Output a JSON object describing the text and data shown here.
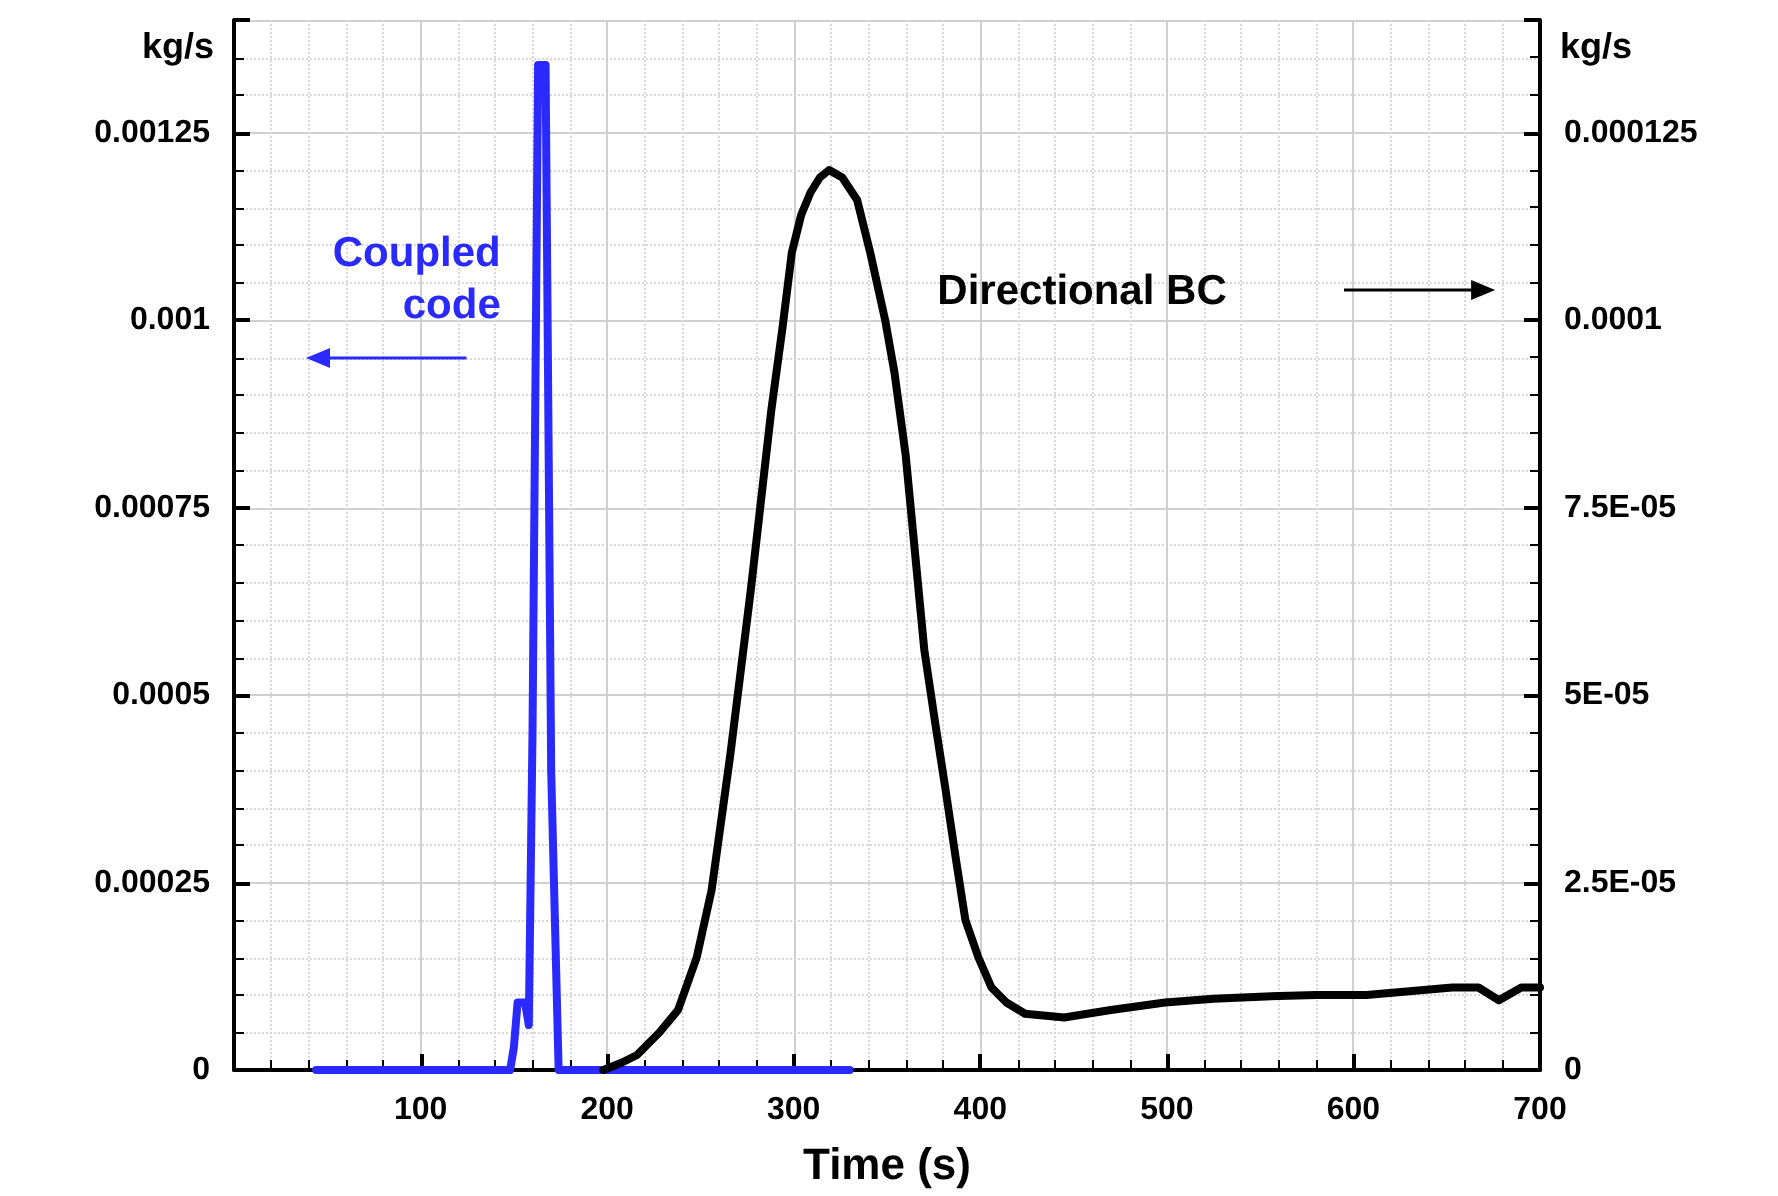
{
  "chart_data": {
    "type": "line",
    "xlabel": "Time (s)",
    "ylabel": "kg/s",
    "y2label": "kg/s",
    "xlim": [
      0,
      700
    ],
    "xticks": [
      100,
      200,
      300,
      400,
      500,
      600,
      700
    ],
    "ylim": [
      0,
      0.0014
    ],
    "yticks": [
      0,
      0.00025,
      0.0005,
      0.00075,
      0.001,
      0.00125
    ],
    "y2lim": [
      0,
      0.00014
    ],
    "y2ticks": [
      0,
      {
        "value": 2.5e-05,
        "label": "2.5E-05"
      },
      {
        "value": 5e-05,
        "label": "5E-05"
      },
      {
        "value": 7.5e-05,
        "label": "7.5E-05"
      },
      0.0001,
      0.000125
    ],
    "grid": true,
    "legend": false,
    "series": [
      {
        "name": "Coupled code",
        "color": "#2a2aff",
        "axis": "y",
        "x": [
          44,
          148,
          150,
          152,
          156,
          158,
          160,
          163,
          167,
          170,
          174,
          330
        ],
        "values": [
          0,
          0,
          3e-05,
          9e-05,
          9e-05,
          6e-05,
          0.00045,
          0.00134,
          0.00134,
          0.0004,
          0,
          0
        ]
      },
      {
        "name": "Directional BC",
        "color": "#000000",
        "axis": "y2",
        "x": [
          198,
          208,
          216,
          228,
          238,
          248,
          256,
          266,
          277,
          288,
          294,
          299,
          304,
          309,
          314,
          319,
          326,
          334,
          341,
          349,
          354,
          360,
          365,
          370,
          376,
          381,
          387,
          392,
          399,
          406,
          414,
          424,
          445,
          470,
          499,
          525,
          553,
          580,
          607,
          630,
          653,
          667,
          678,
          690,
          700
        ],
        "values": [
          0,
          1e-06,
          2e-06,
          5e-06,
          8e-06,
          1.5e-05,
          2.4e-05,
          4.2e-05,
          6.4e-05,
          8.8e-05,
          9.9e-05,
          0.000109,
          0.000114,
          0.000117,
          0.000119,
          0.00012,
          0.000119,
          0.000116,
          0.000109,
          0.0001,
          9.3e-05,
          8.2e-05,
          6.9e-05,
          5.6e-05,
          4.6e-05,
          3.8e-05,
          2.8e-05,
          2e-05,
          1.5e-05,
          1.1e-05,
          9e-06,
          7.5e-06,
          7e-06,
          8e-06,
          9e-06,
          9.5e-06,
          9.8e-06,
          1e-05,
          1e-05,
          1.05e-05,
          1.1e-05,
          1.1e-05,
          9.3e-06,
          1.1e-05,
          1.1e-05
        ]
      }
    ]
  }
}
